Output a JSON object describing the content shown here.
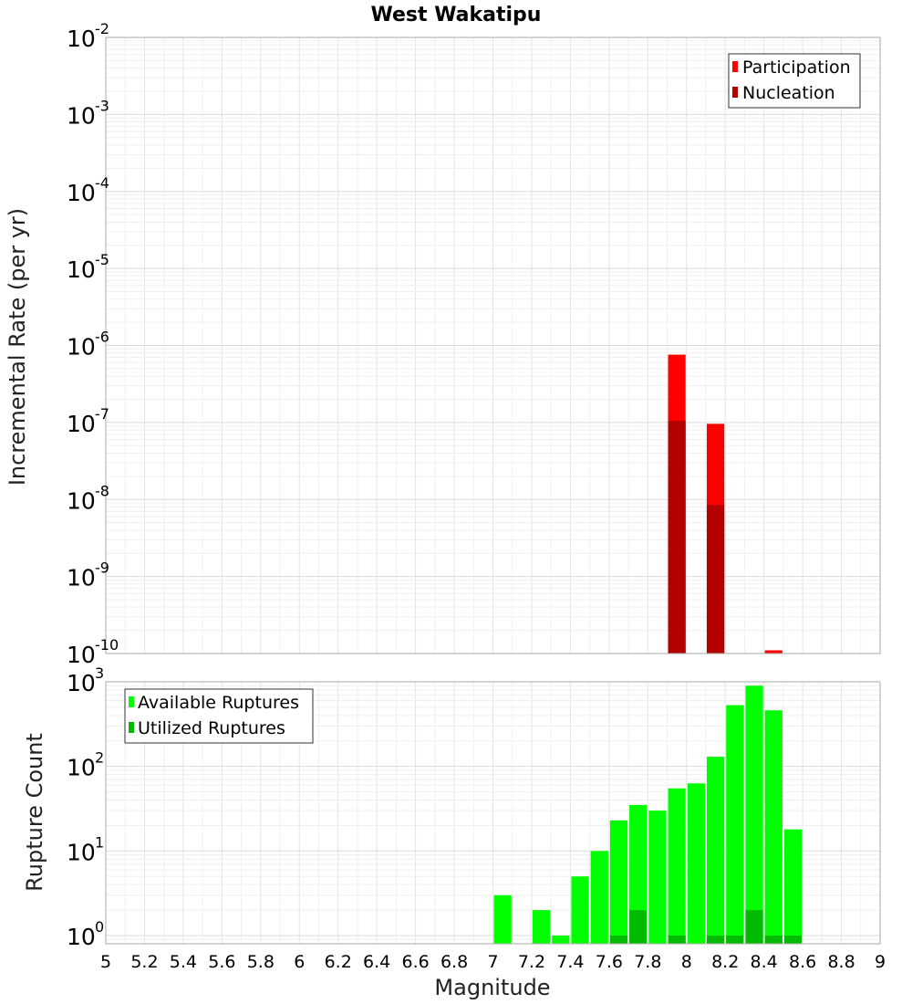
{
  "chart_data": [
    {
      "type": "bar",
      "title": "West Wakatipu",
      "xlabel": "",
      "ylabel": "Incremental Rate (per yr)",
      "y_scale": "log",
      "ylim": [
        1e-10,
        0.01
      ],
      "y_ticks": [
        {
          "base": "10",
          "exp": "-10"
        },
        {
          "base": "10",
          "exp": "-9"
        },
        {
          "base": "10",
          "exp": "-8"
        },
        {
          "base": "10",
          "exp": "-7"
        },
        {
          "base": "10",
          "exp": "-6"
        },
        {
          "base": "10",
          "exp": "-5"
        },
        {
          "base": "10",
          "exp": "-4"
        },
        {
          "base": "10",
          "exp": "-3"
        },
        {
          "base": "10",
          "exp": "-2"
        }
      ],
      "xlim": [
        5,
        9
      ],
      "bar_width": 0.1,
      "grid": true,
      "legend": "top-right",
      "series": [
        {
          "name": "Participation",
          "color": "#ff0000",
          "x": [
            7.95,
            8.15,
            8.45
          ],
          "values": [
            7.6e-07,
            9.6e-08,
            1.1e-10
          ]
        },
        {
          "name": "Nucleation",
          "color": "#b30000",
          "x": [
            7.95,
            8.15
          ],
          "values": [
            1.05e-07,
            8.5e-09
          ]
        }
      ]
    },
    {
      "type": "bar",
      "title": "",
      "xlabel": "Magnitude",
      "ylabel": "Rupture Count",
      "y_scale": "log",
      "ylim": [
        0.8,
        1000
      ],
      "y_ticks": [
        {
          "base": "10",
          "exp": "0"
        },
        {
          "base": "10",
          "exp": "1"
        },
        {
          "base": "10",
          "exp": "2"
        },
        {
          "base": "10",
          "exp": "3"
        }
      ],
      "xlim": [
        5,
        9
      ],
      "x_ticks": [
        "5",
        "5.2",
        "5.4",
        "5.6",
        "5.8",
        "6",
        "6.2",
        "6.4",
        "6.6",
        "6.8",
        "7",
        "7.2",
        "7.4",
        "7.6",
        "7.8",
        "8",
        "8.2",
        "8.4",
        "8.6",
        "8.8",
        "9"
      ],
      "bar_width": 0.1,
      "grid": true,
      "legend": "top-left",
      "series": [
        {
          "name": "Available Ruptures",
          "color": "#00ff00",
          "x": [
            7.05,
            7.25,
            7.35,
            7.45,
            7.55,
            7.65,
            7.75,
            7.85,
            7.95,
            8.05,
            8.15,
            8.25,
            8.35,
            8.45,
            8.55
          ],
          "values": [
            3,
            2,
            1,
            5,
            10,
            23,
            35,
            30,
            55,
            63,
            130,
            530,
            900,
            460,
            18
          ]
        },
        {
          "name": "Utilized Ruptures",
          "color": "#00bb00",
          "x": [
            7.65,
            7.75,
            7.95,
            8.15,
            8.25,
            8.35,
            8.45,
            8.55
          ],
          "values": [
            1,
            2,
            1,
            1,
            1,
            2,
            1,
            1
          ]
        }
      ]
    }
  ]
}
